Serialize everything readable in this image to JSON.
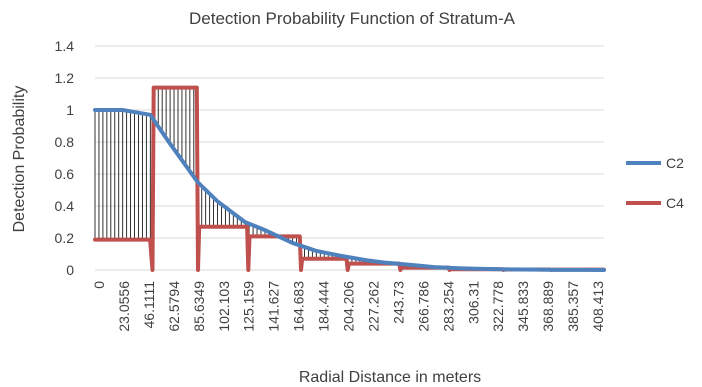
{
  "chart_data": {
    "type": "line",
    "title": "Detection Probability Function of Stratum-A",
    "xlabel": "Radial Distance in meters",
    "ylabel": "Detection Probability",
    "ylim": [
      0,
      1.4
    ],
    "yticks": [
      "0",
      "0.2",
      "0.4",
      "0.6",
      "0.8",
      "1",
      "1.2",
      "1.4"
    ],
    "xticks": [
      "0",
      "23.0556",
      "46.1111",
      "62.5794",
      "85.6349",
      "102.103",
      "125.159",
      "141.627",
      "164.683",
      "184.444",
      "204.206",
      "227.262",
      "243.73",
      "266.786",
      "283.254",
      "306.31",
      "322.778",
      "345.833",
      "368.889",
      "385.357",
      "408.413"
    ],
    "grid": true,
    "legend_position": "right",
    "series": [
      {
        "name": "C2",
        "color": "#4F81BD",
        "x": [
          0,
          23.0556,
          46.1111,
          62.5794,
          85.6349,
          102.103,
          125.159,
          141.627,
          164.683,
          184.444,
          204.206,
          227.262,
          243.73,
          266.786,
          283.254,
          306.31,
          322.778,
          345.833,
          368.889,
          385.357,
          408.413,
          425
        ],
        "values": [
          1.0,
          1.0,
          0.97,
          0.79,
          0.55,
          0.43,
          0.3,
          0.25,
          0.17,
          0.12,
          0.09,
          0.06,
          0.045,
          0.03,
          0.018,
          0.01,
          0.007,
          0.004,
          0.002,
          0.001,
          0.0005,
          0.0
        ]
      },
      {
        "name": "C4",
        "color": "#C0504D",
        "x": [
          0,
          46,
          48,
          49,
          50,
          85,
          86,
          87,
          88,
          127,
          128,
          129,
          130,
          171,
          172,
          173,
          174,
          210,
          211,
          212,
          213,
          254,
          255,
          256,
          257,
          295,
          296,
          297,
          298,
          340,
          341,
          342,
          343,
          380,
          381,
          382,
          383,
          425
        ],
        "values": [
          0.19,
          0.19,
          0.0,
          1.14,
          1.14,
          1.14,
          0.0,
          0.27,
          0.27,
          0.27,
          0.0,
          0.21,
          0.21,
          0.21,
          0.0,
          0.07,
          0.07,
          0.07,
          0.0,
          0.04,
          0.04,
          0.04,
          0.0,
          0.015,
          0.015,
          0.015,
          0.0,
          0.005,
          0.005,
          0.005,
          0.0,
          0.003,
          0.003,
          0.003,
          0.0,
          0.002,
          0.002,
          0.002
        ]
      }
    ]
  }
}
